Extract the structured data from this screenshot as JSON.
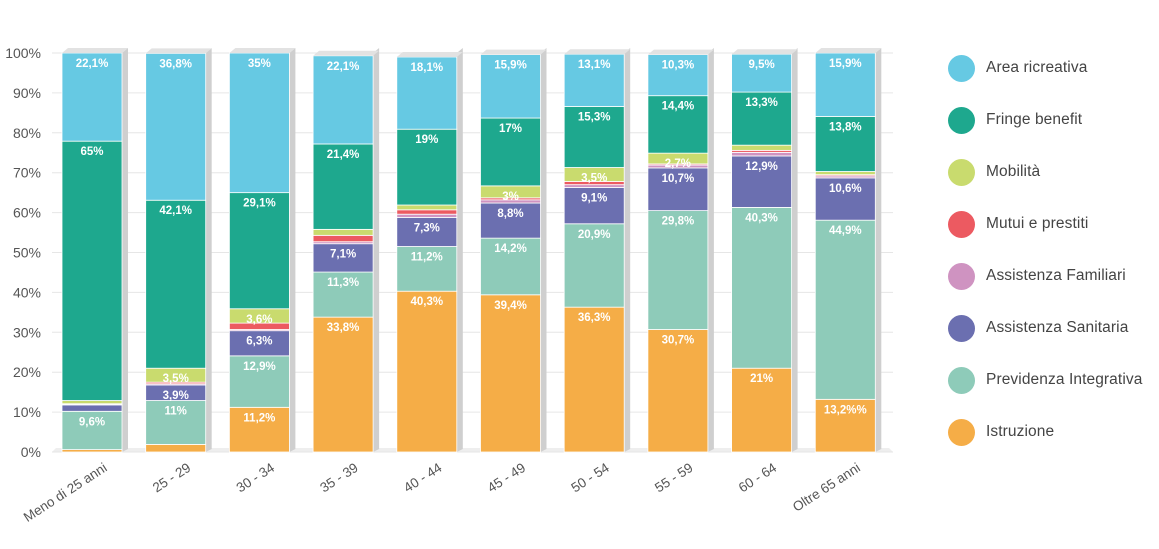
{
  "chart_data": {
    "type": "bar",
    "stacked": true,
    "percent_stacked": true,
    "title": "",
    "xlabel": "",
    "ylabel": "",
    "ylim": [
      0,
      100
    ],
    "yticks": [
      "0%",
      "10%",
      "20%",
      "30%",
      "40%",
      "50%",
      "60%",
      "70%",
      "80%",
      "90%",
      "100%"
    ],
    "categories": [
      "Meno di 25 anni",
      "25 - 29",
      "30 - 34",
      "35 - 39",
      "40 - 44",
      "45 - 49",
      "50 - 54",
      "55 - 59",
      "60 - 64",
      "Oltre 65 anni"
    ],
    "legend_position": "right",
    "grid": true,
    "series": [
      {
        "name": "Istruzione",
        "color": "#f5ad47",
        "values": [
          0.6,
          1.9,
          11.2,
          33.8,
          40.3,
          39.4,
          36.3,
          30.7,
          21,
          13.2
        ],
        "labels": [
          "",
          "",
          "11,2%",
          "33,8%",
          "40,3%",
          "39,4%",
          "36,3%",
          "30,7%",
          "21%",
          "13,2%%"
        ]
      },
      {
        "name": "Previdenza Integrativa",
        "color": "#8ecbb9",
        "values": [
          9.6,
          11,
          12.9,
          11.3,
          11.2,
          14.2,
          20.9,
          29.8,
          40.3,
          44.9
        ],
        "labels": [
          "9,6%",
          "11%",
          "12,9%",
          "11,3%",
          "11,2%",
          "14,2%",
          "20,9%",
          "29,8%",
          "40,3%",
          "44,9%"
        ]
      },
      {
        "name": "Assistenza Sanitaria",
        "color": "#6b6fb0",
        "values": [
          1.6,
          3.9,
          6.3,
          7.1,
          7.3,
          8.8,
          9.1,
          10.7,
          12.9,
          10.6
        ],
        "labels": [
          "",
          "3,9%",
          "6,3%",
          "7,1%",
          "7,3%",
          "8,8%",
          "9,1%",
          "10,7%",
          "12,9%",
          "10,6%"
        ]
      },
      {
        "name": "Assistenza Familiari",
        "color": "#cf93c1",
        "values": [
          0.2,
          0.3,
          0.3,
          0.5,
          0.8,
          0.8,
          0.7,
          0.7,
          0.9,
          0.5
        ],
        "labels": [
          "",
          "",
          "",
          "",
          "",
          "",
          "",
          "",
          "",
          ""
        ]
      },
      {
        "name": "Mutui e prestiti",
        "color": "#ec5a61",
        "values": [
          0.1,
          0.4,
          1.6,
          1.6,
          1.1,
          0.5,
          0.8,
          0.3,
          0.5,
          0.3
        ],
        "labels": [
          "",
          "",
          "",
          "",
          "",
          "",
          "",
          "",
          "",
          ""
        ]
      },
      {
        "name": "Mobilità",
        "color": "#c9db6e",
        "values": [
          0.8,
          3.5,
          3.6,
          1.5,
          1.2,
          3,
          3.5,
          2.7,
          1.3,
          0.8
        ],
        "labels": [
          "",
          "3,5%",
          "3,6%",
          "",
          "",
          "3%",
          "3,5%",
          "2,7%",
          "",
          ""
        ]
      },
      {
        "name": "Fringe benefit",
        "color": "#1ea88e",
        "values": [
          65,
          42.1,
          29.1,
          21.4,
          19,
          17,
          15.3,
          14.4,
          13.3,
          13.8
        ],
        "labels": [
          "65%",
          "42,1%",
          "29,1%",
          "21,4%",
          "19%",
          "17%",
          "15,3%",
          "14,4%",
          "13,3%",
          "13,8%"
        ]
      },
      {
        "name": "Area ricreativa",
        "color": "#66c9e3",
        "values": [
          22.1,
          36.8,
          35,
          22.1,
          18.1,
          15.9,
          13.1,
          10.3,
          9.5,
          15.9
        ],
        "labels": [
          "22,1%",
          "36,8%",
          "35%",
          "22,1%",
          "18,1%",
          "15,9%",
          "13,1%",
          "10,3%",
          "9,5%",
          "15,9%"
        ]
      }
    ],
    "legend_order": [
      "Area ricreativa",
      "Fringe benefit",
      "Mobilità",
      "Mutui e prestiti",
      "Assistenza Familiari",
      "Assistenza Sanitaria",
      "Previdenza Integrativa",
      "Istruzione"
    ]
  }
}
